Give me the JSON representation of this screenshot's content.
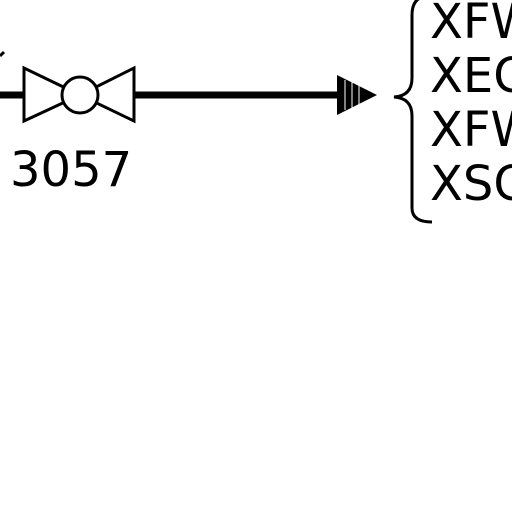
{
  "diagram": {
    "valve_tag": "3057",
    "destinations": [
      "XFW",
      "XEC",
      "XFW",
      "XSC"
    ],
    "line_color": "#000000",
    "background_color": "#ffffff"
  }
}
